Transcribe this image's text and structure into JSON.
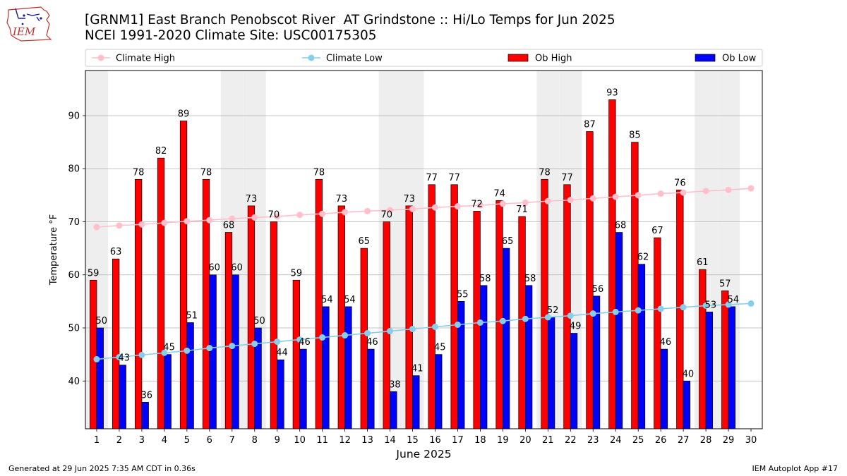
{
  "header": {
    "title_line1": "[GRNM1] East Branch Penobscot River  AT Grindstone :: Hi/Lo Temps for Jun 2025",
    "title_line2": "NCEI 1991-2020 Climate Site: USC00175305",
    "logo_text": "IEM"
  },
  "footer": {
    "left": "Generated at 29 Jun 2025 7:35 AM CDT in 0.36s",
    "right": "IEM Autoplot App #17"
  },
  "colors": {
    "ob_high": "#ff0000",
    "ob_low": "#0000ff",
    "climate_high": "#ffc0cb",
    "climate_low": "#87ceeb",
    "weekend_shade": "#eeeeee",
    "grid": "#b0b0b0"
  },
  "chart_data": {
    "type": "bar",
    "title": "[GRNM1] East Branch Penobscot River  AT Grindstone :: Hi/Lo Temps for Jun 2025",
    "subtitle": "NCEI 1991-2020 Climate Site: USC00175305",
    "xlabel": "June 2025",
    "ylabel": "Temperature °F",
    "xlim": [
      0.5,
      30.5
    ],
    "ylim": [
      31,
      98.5
    ],
    "yticks": [
      40,
      50,
      60,
      70,
      80,
      90
    ],
    "grid": "y",
    "legend_position": "top",
    "categories": [
      "1",
      "2",
      "3",
      "4",
      "5",
      "6",
      "7",
      "8",
      "9",
      "10",
      "11",
      "12",
      "13",
      "14",
      "15",
      "16",
      "17",
      "18",
      "19",
      "20",
      "21",
      "22",
      "23",
      "24",
      "25",
      "26",
      "27",
      "28",
      "29",
      "30"
    ],
    "shaded_days": [
      1,
      7,
      8,
      14,
      15,
      21,
      22,
      28,
      29
    ],
    "series": [
      {
        "name": "Ob High",
        "kind": "bar",
        "values": [
          59,
          63,
          78,
          82,
          89,
          78,
          68,
          73,
          70,
          59,
          78,
          73,
          65,
          70,
          73,
          77,
          77,
          72,
          74,
          71,
          78,
          77,
          87,
          93,
          85,
          67,
          76,
          61,
          57,
          null
        ]
      },
      {
        "name": "Ob Low",
        "kind": "bar",
        "values": [
          50,
          43,
          36,
          45,
          51,
          60,
          60,
          50,
          44,
          46,
          54,
          54,
          46,
          38,
          41,
          45,
          55,
          58,
          65,
          58,
          52,
          49,
          56,
          68,
          62,
          46,
          40,
          53,
          54,
          null
        ]
      },
      {
        "name": "Climate High",
        "kind": "line",
        "values": [
          69.0,
          69.3,
          69.5,
          69.8,
          70.1,
          70.3,
          70.6,
          70.8,
          71.0,
          71.3,
          71.5,
          71.8,
          72.0,
          72.2,
          72.4,
          72.7,
          72.9,
          73.1,
          73.4,
          73.6,
          73.9,
          74.1,
          74.4,
          74.7,
          75.0,
          75.3,
          75.5,
          75.8,
          76.0,
          76.3
        ]
      },
      {
        "name": "Climate Low",
        "kind": "line",
        "values": [
          44.1,
          44.5,
          44.9,
          45.3,
          45.7,
          46.2,
          46.6,
          47.0,
          47.4,
          47.8,
          48.2,
          48.6,
          49.0,
          49.4,
          49.8,
          50.2,
          50.6,
          51.0,
          51.3,
          51.7,
          52.0,
          52.3,
          52.7,
          53.0,
          53.3,
          53.6,
          53.9,
          54.2,
          54.4,
          54.6
        ]
      }
    ]
  }
}
